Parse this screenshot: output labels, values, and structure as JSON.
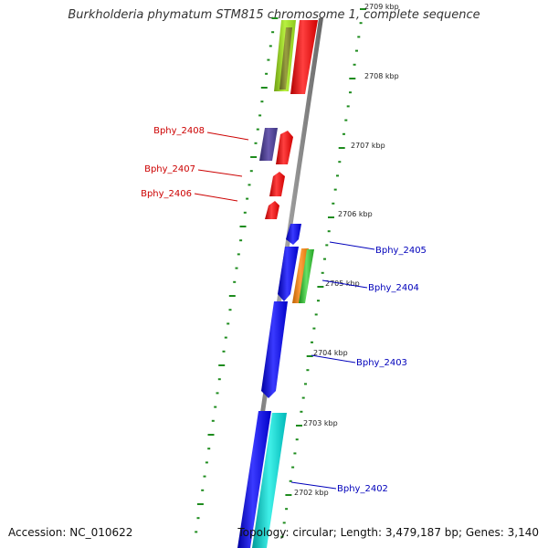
{
  "title": "Burkholderia phymatum STM815 chromosome 1, complete sequence",
  "accession_text": "Accession: NC_010622",
  "summary_text": "Topology: circular; Length: 3,479,187 bp; Genes: 3,140",
  "colors": {
    "tick": "#1e8c1e",
    "backbone": "#7a7a7a",
    "left_label": "#cc0000",
    "right_label": "#0000bb"
  },
  "ticks": [
    "2709 kbp",
    "2708 kbp",
    "2707 kbp",
    "2706 kbp",
    "2705 kbp",
    "2704 kbp",
    "2703 kbp",
    "2702 kbp"
  ],
  "gene_labels_left": [
    "Bphy_2408",
    "Bphy_2407",
    "Bphy_2406"
  ],
  "gene_labels_right": [
    "Bphy_2405",
    "Bphy_2404",
    "Bphy_2403",
    "Bphy_2402"
  ]
}
